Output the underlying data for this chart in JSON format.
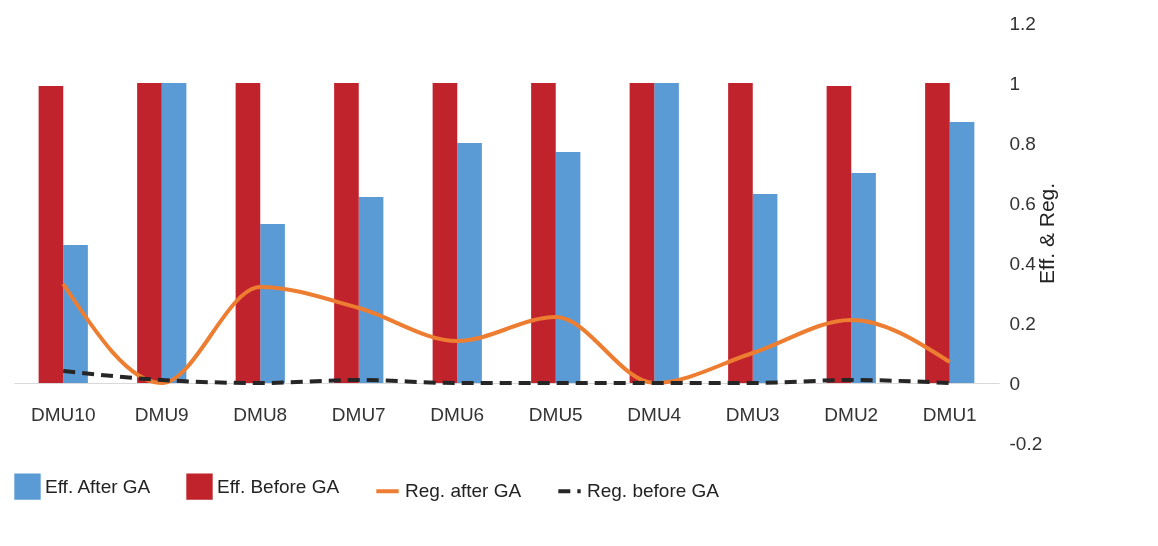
{
  "chart_data": {
    "type": "bar",
    "ylabel": "Eff. & Reg.",
    "categories": [
      "DMU10",
      "DMU9",
      "DMU8",
      "DMU7",
      "DMU6",
      "DMU5",
      "DMU4",
      "DMU3",
      "DMU2",
      "DMU1"
    ],
    "series": [
      {
        "name": "Eff. After GA",
        "color": "#5b9bd5",
        "values": [
          0.46,
          1,
          0.53,
          0.62,
          0.8,
          0.77,
          1,
          0.63,
          0.7,
          0.87
        ]
      },
      {
        "name": "Eff. Before GA",
        "color": "#c0232c",
        "values": [
          0.99,
          1,
          1,
          1,
          1,
          1,
          1,
          1,
          0.99,
          1
        ]
      },
      {
        "name": "Reg. after GA",
        "type": "line",
        "color": "#ed7d31",
        "line_style": "solid",
        "values": [
          0.33,
          0,
          0.32,
          0.25,
          0.14,
          0.22,
          0,
          0.1,
          0.21,
          0.07
        ]
      },
      {
        "name": "Reg. before GA",
        "type": "line",
        "color": "#262626",
        "line_style": "dashed",
        "values": [
          0.04,
          0.01,
          0,
          0.01,
          0,
          0,
          0,
          0,
          0.01,
          0
        ]
      }
    ],
    "ylim": [
      -0.2,
      1.2
    ],
    "yticks": [
      -0.2,
      0,
      0.2,
      0.4,
      0.6,
      0.8,
      1,
      1.2
    ],
    "grid": false,
    "legend": "bottom"
  }
}
